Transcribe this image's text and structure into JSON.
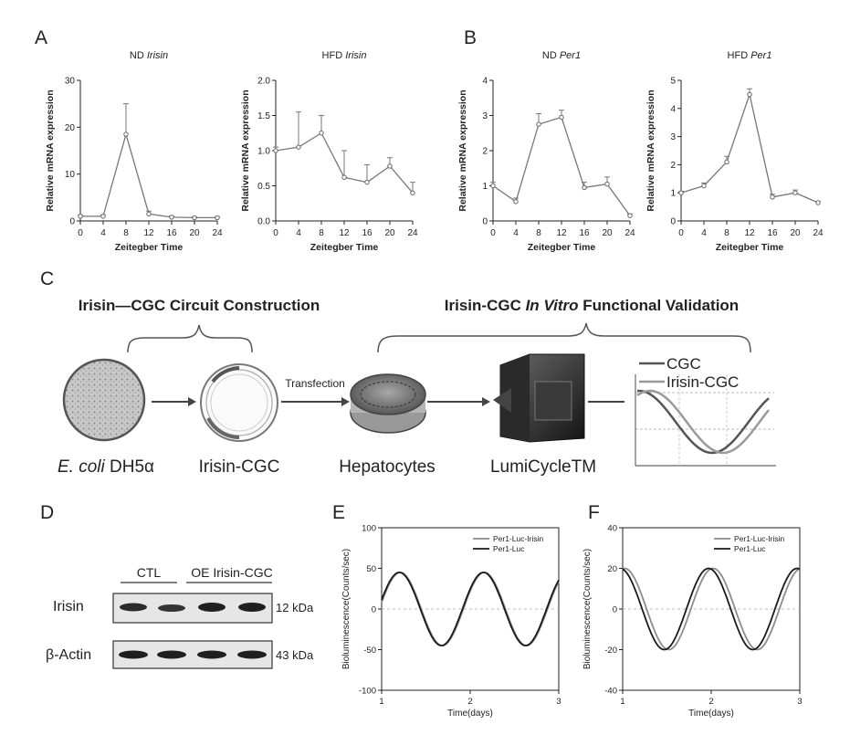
{
  "panel_letters": {
    "a": "A",
    "b": "B",
    "c": "C",
    "d": "D",
    "e": "E",
    "f": "F"
  },
  "common": {
    "xlabel": "Zeitegber Time",
    "ylabel": "Relative mRNA  expression"
  },
  "chart_data": [
    {
      "id": "a1",
      "type": "line",
      "title_prefix": "ND ",
      "title_gene": "Irisin",
      "xlabel": "Zeitegber Time",
      "ylabel": "Relative mRNA  expression",
      "x": [
        0,
        4,
        8,
        12,
        16,
        20,
        24
      ],
      "y": [
        1.0,
        1.0,
        18.5,
        1.5,
        0.8,
        0.7,
        0.7
      ],
      "err": [
        0.3,
        0.3,
        6.5,
        0.6,
        0.3,
        0.2,
        0.2
      ],
      "xlim": [
        0,
        24
      ],
      "ylim": [
        0,
        30
      ],
      "xticks": [
        0,
        4,
        8,
        12,
        16,
        20,
        24
      ],
      "yticks": [
        0,
        10,
        20,
        30
      ],
      "yticklabels": [
        "0",
        "10",
        "20",
        "30"
      ]
    },
    {
      "id": "a2",
      "type": "line",
      "title_prefix": "HFD ",
      "title_gene": "Irisin",
      "xlabel": "Zeitegber Time",
      "ylabel": "Relative mRNA  expression",
      "x": [
        0,
        4,
        8,
        12,
        16,
        20,
        24
      ],
      "y": [
        1.0,
        1.05,
        1.25,
        0.62,
        0.55,
        0.78,
        0.4
      ],
      "err": [
        0.05,
        0.5,
        0.25,
        0.38,
        0.25,
        0.12,
        0.15
      ],
      "xlim": [
        0,
        24
      ],
      "ylim": [
        0,
        2.0
      ],
      "xticks": [
        0,
        4,
        8,
        12,
        16,
        20,
        24
      ],
      "yticks": [
        0,
        0.5,
        1.0,
        1.5,
        2.0
      ],
      "yticklabels": [
        "0.0",
        "0.5",
        "1.0",
        "1.5",
        "2.0"
      ]
    },
    {
      "id": "b1",
      "type": "line",
      "title_prefix": "ND ",
      "title_gene": "Per1",
      "xlabel": "Zeitegber Time",
      "ylabel": "Relative mRNA  expression",
      "x": [
        0,
        4,
        8,
        12,
        16,
        20,
        24
      ],
      "y": [
        1.0,
        0.55,
        2.75,
        2.95,
        0.95,
        1.05,
        0.15
      ],
      "err": [
        0.1,
        0.1,
        0.3,
        0.2,
        0.15,
        0.2,
        0.05
      ],
      "xlim": [
        0,
        24
      ],
      "ylim": [
        0,
        4
      ],
      "xticks": [
        0,
        4,
        8,
        12,
        16,
        20,
        24
      ],
      "yticks": [
        0,
        1,
        2,
        3,
        4
      ],
      "yticklabels": [
        "0",
        "1",
        "2",
        "3",
        "4"
      ]
    },
    {
      "id": "b2",
      "type": "line",
      "title_prefix": "HFD ",
      "title_gene": "Per1",
      "xlabel": "Zeitegber Time",
      "ylabel": "Relative mRNA  expression",
      "x": [
        0,
        4,
        8,
        12,
        16,
        20,
        24
      ],
      "y": [
        1.0,
        1.25,
        2.1,
        4.5,
        0.85,
        1.0,
        0.65
      ],
      "err": [
        0.05,
        0.1,
        0.2,
        0.2,
        0.1,
        0.1,
        0.05
      ],
      "xlim": [
        0,
        24
      ],
      "ylim": [
        0,
        5
      ],
      "xticks": [
        0,
        4,
        8,
        12,
        16,
        20,
        24
      ],
      "yticks": [
        0,
        1,
        2,
        3,
        4,
        5
      ],
      "yticklabels": [
        "0",
        "1",
        "2",
        "3",
        "4",
        "5"
      ]
    },
    {
      "id": "e",
      "type": "line",
      "xlabel": "Time(days)",
      "ylabel": "Bioluminescence(Counts/sec)",
      "xlim": [
        1,
        3
      ],
      "ylim": [
        -100,
        100
      ],
      "xticks": [
        1,
        2,
        3
      ],
      "yticks": [
        -100,
        -50,
        0,
        50,
        100
      ],
      "period": 0.95,
      "phase": 1.21,
      "series": [
        {
          "name": "Per1-Luc-Irisin",
          "amplitude": 45,
          "phase_shift": 0.0,
          "color": "#8c8c8c"
        },
        {
          "name": "Per1-Luc",
          "amplitude": 45,
          "phase_shift": 0.01,
          "color": "#1a1a1a"
        }
      ]
    },
    {
      "id": "f",
      "type": "line",
      "xlabel": "Time(days)",
      "ylabel": "Bioluminescence(Counts/sec)",
      "xlim": [
        1,
        3
      ],
      "ylim": [
        -40,
        40
      ],
      "xticks": [
        1,
        2,
        3
      ],
      "yticks": [
        -40,
        -20,
        0,
        20,
        40
      ],
      "period": 1.0,
      "phase": 1.02,
      "series": [
        {
          "name": "Per1-Luc-Irisin",
          "amplitude": 20,
          "phase_shift": 0.0,
          "color": "#8c8c8c"
        },
        {
          "name": "Per1-Luc",
          "amplitude": 20,
          "phase_shift": 0.05,
          "color": "#1a1a1a"
        }
      ]
    }
  ],
  "diagram": {
    "heading_left": "Irisin—CGC Circuit Construction",
    "heading_right_a": "Irisin-CGC ",
    "heading_right_b": "In Vitro",
    "heading_right_c": " Functional Validation",
    "transfection": "Transfection",
    "label_ecoli_a": "E. coli",
    "label_ecoli_b": " DH5α",
    "label_plasmid": "Irisin-CGC",
    "label_hepatocytes": "Hepatocytes",
    "label_lumicycle": "LumiCycleTM",
    "legend_cgc": "CGC",
    "legend_irisin_cgc": "Irisin-CGC"
  },
  "blot": {
    "group_ctl": "CTL",
    "group_oe": "OE Irisin-CGC",
    "row1_label": "Irisin",
    "row1_kda": "12 kDa",
    "row2_label": "β-Actin",
    "row2_kda": "43 kDa"
  },
  "colors": {
    "line_dark": "#1a1a1a",
    "line_gray": "#8c8c8c",
    "axis": "#222222",
    "grid": "#bbbbbb"
  }
}
